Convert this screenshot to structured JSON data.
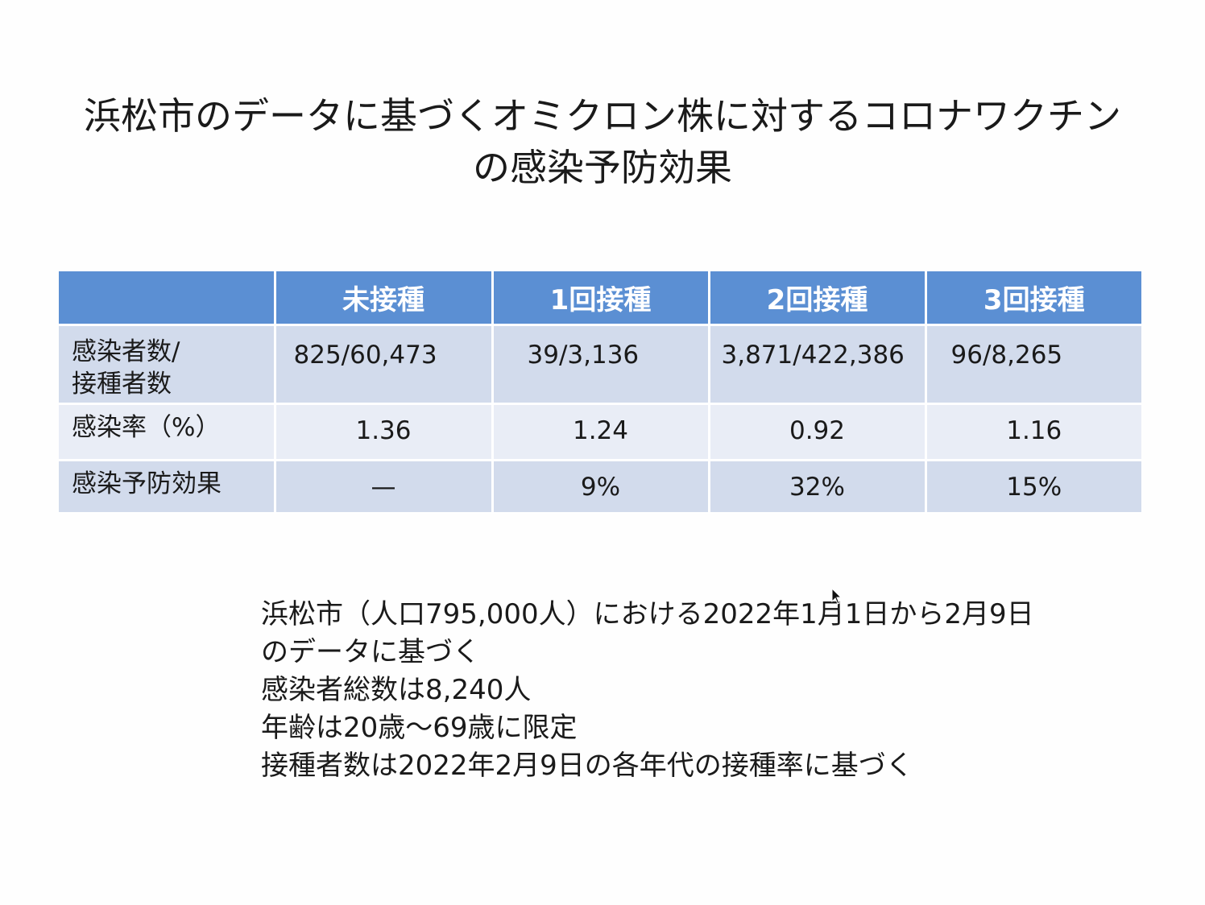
{
  "slide": {
    "title_line1": "浜松市のデータに基づくオミクロン株に対するコロナワクチン",
    "title_line2": "の感染予防効果"
  },
  "table": {
    "headers": [
      "",
      "未接種",
      "1回接種",
      "2回接種",
      "3回接種"
    ],
    "rows": [
      {
        "label_line1": "感染者数/",
        "label_line2": "接種者数",
        "values": [
          "825/60,473",
          "39/3,136",
          "3,871/422,386",
          "96/8,265"
        ]
      },
      {
        "label": "感染率（%）",
        "values": [
          "1.36",
          "1.24",
          "0.92",
          "1.16"
        ]
      },
      {
        "label": "感染予防効果",
        "values": [
          "—",
          "9%",
          "32%",
          "15%"
        ]
      }
    ]
  },
  "notes": [
    "浜松市（人口795,000人）における2022年1月1日から2月9日",
    "のデータに基づく",
    "感染者総数は8,240人",
    "年齢は20歳～69歳に限定",
    "接種者数は2022年2月9日の各年代の接種率に基づく"
  ],
  "colors": {
    "header_bg": "#5b8fd3",
    "row_dark": "#d2dbec",
    "row_light": "#e9edf6"
  },
  "icons": {
    "cursor": "mouse-pointer-icon"
  }
}
